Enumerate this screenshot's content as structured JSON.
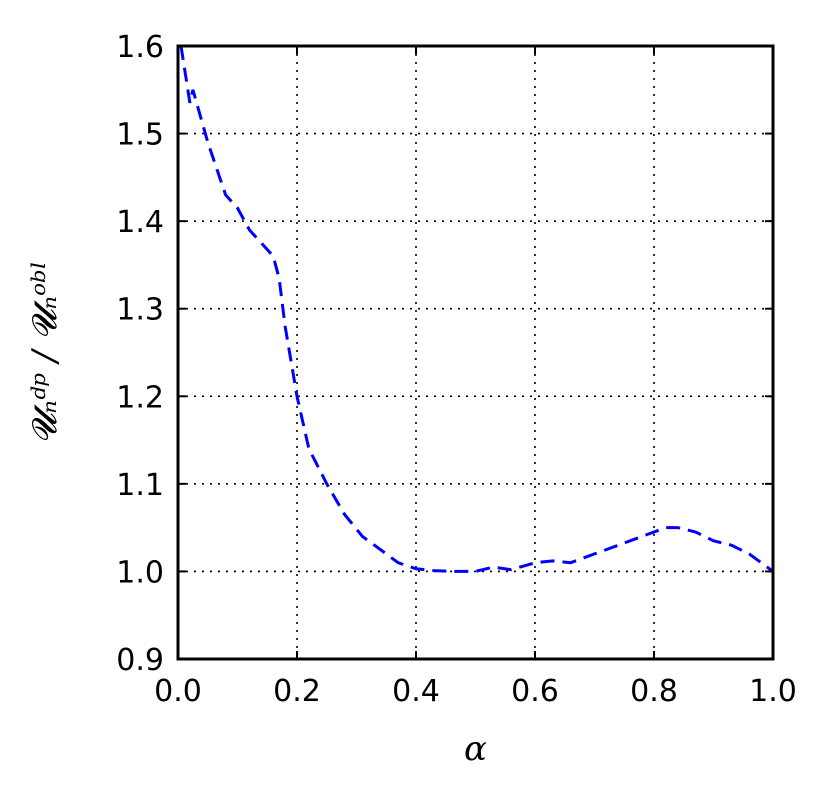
{
  "chart_data": {
    "type": "line",
    "title": "",
    "xlabel": "α",
    "ylabel": "𝓤ₙᵈᵖ / 𝓤ₙᵒᵇˡ",
    "xlim": [
      0.0,
      1.0
    ],
    "ylim": [
      0.9,
      1.6
    ],
    "grid": true,
    "xticks": [
      "0.0",
      "0.2",
      "0.4",
      "0.6",
      "0.8",
      "1.0"
    ],
    "yticks": [
      "0.9",
      "1.0",
      "1.1",
      "1.2",
      "1.3",
      "1.4",
      "1.5",
      "1.6"
    ],
    "series": [
      {
        "color": "#0000ff",
        "style": "dashed",
        "x": [
          0.005,
          0.02,
          0.025,
          0.05,
          0.08,
          0.1,
          0.12,
          0.14,
          0.16,
          0.17,
          0.18,
          0.2,
          0.22,
          0.25,
          0.28,
          0.31,
          0.34,
          0.37,
          0.4,
          0.43,
          0.46,
          0.5,
          0.53,
          0.56,
          0.6,
          0.63,
          0.66,
          0.7,
          0.74,
          0.78,
          0.82,
          0.84,
          0.87,
          0.9,
          0.93,
          0.96,
          1.0
        ],
        "y": [
          1.6,
          1.535,
          1.55,
          1.49,
          1.43,
          1.415,
          1.39,
          1.375,
          1.36,
          1.335,
          1.28,
          1.2,
          1.14,
          1.1,
          1.065,
          1.04,
          1.025,
          1.01,
          1.003,
          1.001,
          1.0,
          1.0,
          1.005,
          1.002,
          1.01,
          1.012,
          1.01,
          1.02,
          1.03,
          1.04,
          1.05,
          1.05,
          1.045,
          1.035,
          1.03,
          1.02,
          1.0
        ]
      }
    ]
  }
}
